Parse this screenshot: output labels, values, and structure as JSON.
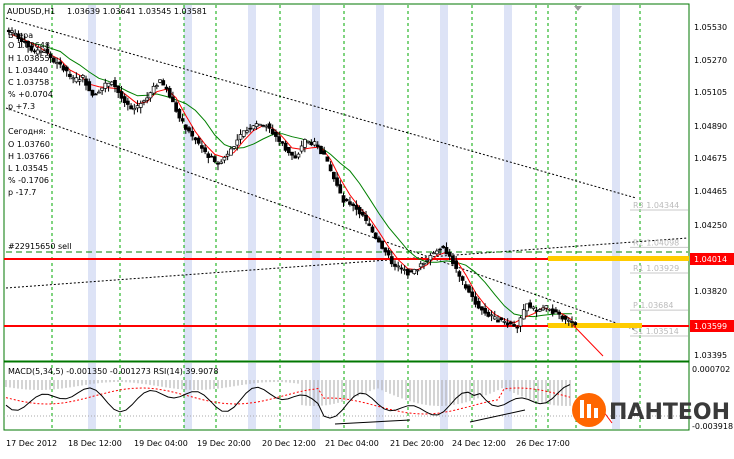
{
  "header": {
    "symbol": "AUDUSD,H1",
    "ohlc": "1.03639 1.03641 1.03545 1.03581"
  },
  "info_block": {
    "week_title": "Вчера",
    "week_lines": [
      "O 1.03648",
      "H 1.03855",
      "L 1.03440",
      "C 1.03758",
      "% +0.0704",
      "p +7.3"
    ],
    "today_title": "Сегодня:",
    "today_lines": [
      "O 1.03760",
      "H 1.03766",
      "L 1.03545",
      "% -0.1706",
      "p -17.7"
    ]
  },
  "order_label": "#22915650 sell",
  "price_axis": {
    "ticks": [
      "1.05530",
      "1.05270",
      "1.05105",
      "1.04890",
      "1.04675",
      "1.04465",
      "1.04250",
      "1.04014",
      "1.03820",
      "1.03599",
      "1.03395"
    ],
    "highlight_red_top": "1.04014",
    "highlight_red_bottom": "1.03599"
  },
  "pivot_labels": [
    {
      "text": "R3 1.04344",
      "price": 1.04344
    },
    {
      "text": "R2 1.04098",
      "price": 1.04098
    },
    {
      "text": "R1 1.03929",
      "price": 1.03929
    },
    {
      "text": "P 1.03684",
      "price": 1.03684
    },
    {
      "text": "S1 1.03514",
      "price": 1.03514
    }
  ],
  "indicator": {
    "label": "MACD(5,34,5) -0.001350 -0.001273  RSI(14) 39.9078",
    "axis_top": "0.000702",
    "axis_bottom": "-0.003918"
  },
  "time_axis": [
    "17 Dec 2012",
    "18 Dec 12:00",
    "19 Dec 04:00",
    "19 Dec 20:00",
    "20 Dec 12:00",
    "21 Dec 04:00",
    "21 Dec 20:00",
    "24 Dec 12:00",
    "26 Dec 17:00"
  ],
  "logo": {
    "text": "ПАНТЕОН"
  },
  "colors": {
    "border": "#007700",
    "grid_green": "#00aa00",
    "bull_candle": "#ffffff",
    "bear_candle": "#000000",
    "ma_fast": "#ff0000",
    "ma_slow": "#008000",
    "level_red": "#ff0000",
    "level_orange": "#ffcc00",
    "session_band": "#dde3f6",
    "logo_orange": "#ff6600"
  },
  "chart_data": {
    "type": "candlestick",
    "symbol": "AUDUSD",
    "timeframe": "H1",
    "ylim": [
      1.0336,
      1.0563
    ],
    "levels": [
      {
        "price": 1.04014,
        "color": "#ff0000"
      },
      {
        "price": 1.03599,
        "color": "#ff0000"
      }
    ],
    "close_path": [
      1.055,
      1.0545,
      1.0538,
      1.054,
      1.0532,
      1.0528,
      1.052,
      1.0522,
      1.051,
      1.0515,
      1.052,
      1.0508,
      1.05,
      1.0505,
      1.0512,
      1.052,
      1.051,
      1.0495,
      1.0485,
      1.0478,
      1.047,
      1.0465,
      1.0472,
      1.048,
      1.0488,
      1.0492,
      1.049,
      1.0483,
      1.0475,
      1.0468,
      1.048,
      1.0478,
      1.047,
      1.0455,
      1.044,
      1.0438,
      1.043,
      1.042,
      1.041,
      1.04,
      1.0395,
      1.0392,
      1.0398,
      1.0405,
      1.041,
      1.0405,
      1.039,
      1.038,
      1.037,
      1.0365,
      1.0362,
      1.036,
      1.0358,
      1.0372,
      1.0368,
      1.037,
      1.0366,
      1.0362,
      1.0358
    ]
  }
}
